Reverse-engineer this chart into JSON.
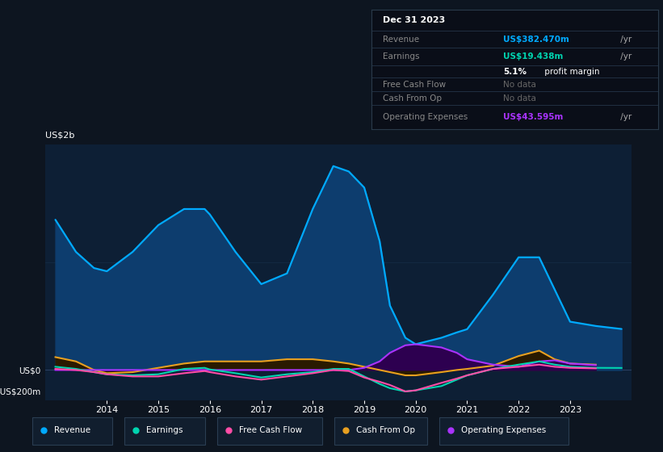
{
  "bg_color": "#0d1520",
  "plot_bg_color": "#0d1f35",
  "years": [
    2013.0,
    2013.4,
    2013.75,
    2014.0,
    2014.5,
    2015.0,
    2015.5,
    2015.9,
    2016.0,
    2016.5,
    2017.0,
    2017.5,
    2018.0,
    2018.4,
    2018.7,
    2019.0,
    2019.3,
    2019.5,
    2019.8,
    2020.0,
    2020.5,
    2020.8,
    2021.0,
    2021.5,
    2022.0,
    2022.4,
    2022.7,
    2023.0,
    2023.5,
    2024.0
  ],
  "revenue": [
    1400,
    1100,
    950,
    920,
    1100,
    1350,
    1500,
    1500,
    1450,
    1100,
    800,
    900,
    1500,
    1900,
    1850,
    1700,
    1200,
    600,
    300,
    240,
    300,
    350,
    380,
    700,
    1050,
    1050,
    750,
    450,
    410,
    382
  ],
  "earnings": [
    30,
    10,
    -20,
    -40,
    -50,
    -40,
    10,
    20,
    5,
    -30,
    -70,
    -40,
    -20,
    10,
    10,
    -60,
    -130,
    -170,
    -200,
    -190,
    -150,
    -90,
    -50,
    10,
    50,
    80,
    50,
    30,
    20,
    19
  ],
  "free_cash_flow": [
    10,
    0,
    -20,
    -40,
    -60,
    -60,
    -30,
    -10,
    -20,
    -60,
    -90,
    -60,
    -30,
    0,
    -10,
    -70,
    -110,
    -140,
    -200,
    -190,
    -120,
    -80,
    -50,
    10,
    30,
    50,
    30,
    20,
    15,
    null
  ],
  "cash_from_op": [
    120,
    80,
    0,
    -30,
    -20,
    20,
    60,
    80,
    80,
    80,
    80,
    100,
    100,
    80,
    60,
    30,
    0,
    -20,
    -50,
    -50,
    -20,
    0,
    10,
    40,
    130,
    180,
    100,
    60,
    50,
    null
  ],
  "operating_expenses": [
    0,
    0,
    0,
    0,
    0,
    0,
    0,
    0,
    0,
    0,
    0,
    0,
    0,
    0,
    0,
    20,
    80,
    160,
    230,
    240,
    210,
    160,
    100,
    50,
    30,
    80,
    90,
    60,
    45,
    null
  ],
  "revenue_color": "#00aaff",
  "revenue_fill": "#0d3d6e",
  "earnings_color": "#00d4b0",
  "free_cash_flow_color": "#ff4da6",
  "cash_from_op_color": "#e8a020",
  "cash_from_op_fill": "#2a1a00",
  "operating_expenses_color": "#aa33ff",
  "operating_expenses_fill": "#2d0050",
  "ylim_min": -280,
  "ylim_max": 2100,
  "xlim_min": 2012.8,
  "xlim_max": 2024.2,
  "ytick_vals": [
    -200,
    0,
    2000
  ],
  "ytick_labels": [
    "-US$200m",
    "US$0",
    ""
  ],
  "xtick_vals": [
    2014,
    2015,
    2016,
    2017,
    2018,
    2019,
    2020,
    2021,
    2022,
    2023
  ],
  "y2b_label": "US$2b",
  "grid_line_color": "#1e3a5a",
  "zero_line_color": "#2a4060",
  "legend_items": [
    {
      "label": "Revenue",
      "color": "#00aaff"
    },
    {
      "label": "Earnings",
      "color": "#00d4b0"
    },
    {
      "label": "Free Cash Flow",
      "color": "#ff4da6"
    },
    {
      "label": "Cash From Op",
      "color": "#e8a020"
    },
    {
      "label": "Operating Expenses",
      "color": "#aa33ff"
    }
  ],
  "legend_bg": "#111e2e",
  "legend_border": "#2a3d52",
  "info_box": {
    "date": "Dec 31 2023",
    "date_color": "#ffffff",
    "divider_color": "#2a3d52",
    "rows": [
      {
        "label": "Revenue",
        "label_color": "#888888",
        "value": "US$382.470m",
        "suffix": " /yr",
        "value_color": "#00aaff",
        "nodata": false
      },
      {
        "label": "Earnings",
        "label_color": "#888888",
        "value": "US$19.438m",
        "suffix": " /yr",
        "value_color": "#00d4b0",
        "nodata": false
      },
      {
        "label": "",
        "label_color": "#888888",
        "value": "5.1%",
        "suffix": " profit margin",
        "value_color": "#ffffff",
        "bold_value": true,
        "nodata": false
      },
      {
        "label": "Free Cash Flow",
        "label_color": "#888888",
        "value": "No data",
        "suffix": "",
        "value_color": "#666666",
        "nodata": true
      },
      {
        "label": "Cash From Op",
        "label_color": "#888888",
        "value": "No data",
        "suffix": "",
        "value_color": "#666666",
        "nodata": true
      },
      {
        "label": "Operating Expenses",
        "label_color": "#888888",
        "value": "US$43.595m",
        "suffix": " /yr",
        "value_color": "#aa33ff",
        "nodata": false
      }
    ]
  }
}
